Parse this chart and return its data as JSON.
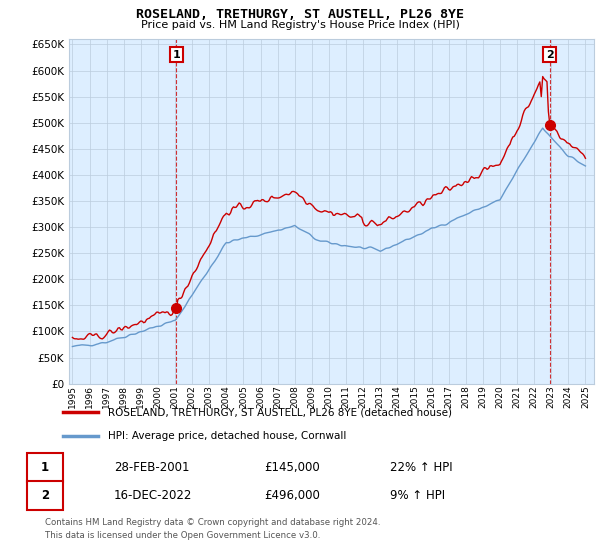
{
  "title": "ROSELAND, TRETHURGY, ST AUSTELL, PL26 8YE",
  "subtitle": "Price paid vs. HM Land Registry's House Price Index (HPI)",
  "legend_label_red": "ROSELAND, TRETHURGY, ST AUSTELL, PL26 8YE (detached house)",
  "legend_label_blue": "HPI: Average price, detached house, Cornwall",
  "annotation1_date": "28-FEB-2001",
  "annotation1_price": "£145,000",
  "annotation1_hpi": "22% ↑ HPI",
  "annotation2_date": "16-DEC-2022",
  "annotation2_price": "£496,000",
  "annotation2_hpi": "9% ↑ HPI",
  "footer": "Contains HM Land Registry data © Crown copyright and database right 2024.\nThis data is licensed under the Open Government Licence v3.0.",
  "ylim": [
    0,
    660000
  ],
  "yticks": [
    0,
    50000,
    100000,
    150000,
    200000,
    250000,
    300000,
    350000,
    400000,
    450000,
    500000,
    550000,
    600000,
    650000
  ],
  "red_color": "#cc0000",
  "blue_color": "#6699cc",
  "vline_color": "#cc0000",
  "grid_color": "#bbccdd",
  "bg_color": "#ffffff",
  "plot_bg_color": "#ddeeff",
  "xstart_year": 1995,
  "xend_year": 2025
}
